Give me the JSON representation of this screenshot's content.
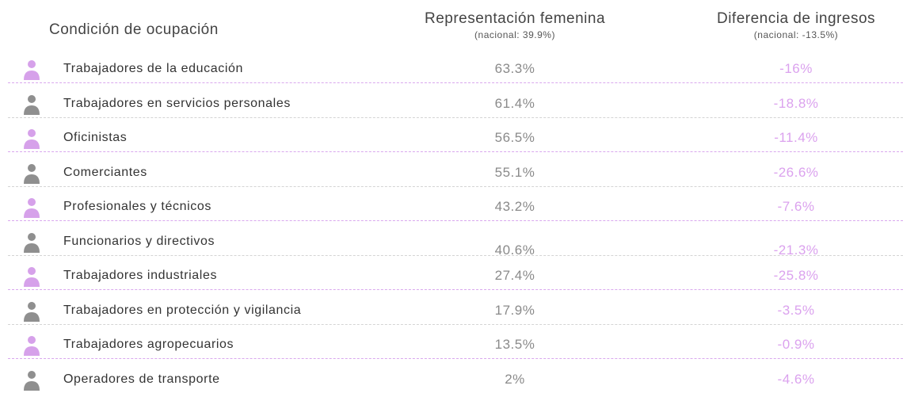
{
  "table": {
    "header": {
      "name": "Condición de ocupación",
      "female": "Representación femenina",
      "female_note": "(nacional: 39.9%)",
      "gap": "Diferencia de ingresos",
      "gap_note": "(nacional: -13.5%)"
    },
    "rows": [
      [
        "Trabajadores de la educación",
        "63.3%",
        "-16%"
      ],
      [
        "Trabajadores en servicios personales",
        "61.4%",
        "-18.8%"
      ],
      [
        "Oficinistas",
        "56.5%",
        "-11.4%"
      ],
      [
        "Comerciantes",
        "55.1%",
        "-26.6%"
      ],
      [
        "Profesionales y técnicos",
        "43.2%",
        "-7.6%"
      ],
      [
        "Funcionarios y directivos",
        "40.6%",
        "-21.3%"
      ],
      [
        "Trabajadores industriales",
        "27.4%",
        "-25.8%"
      ],
      [
        "Trabajadores en protección y vigilancia",
        "17.9%",
        "-3.5%"
      ],
      [
        "Trabajadores agropecuarios",
        "13.5%",
        "-0.9%"
      ],
      [
        "Operadores de transporte",
        "2%",
        "-4.6%"
      ]
    ]
  }
}
